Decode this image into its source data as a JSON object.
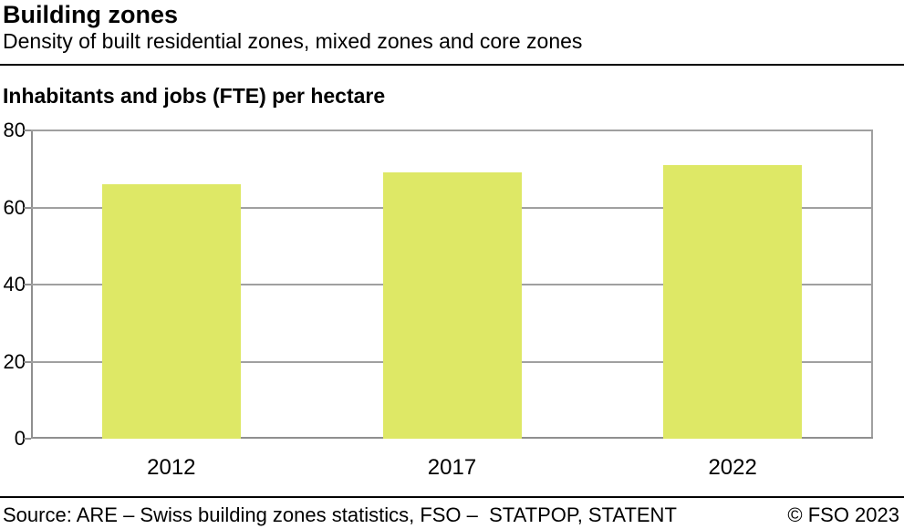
{
  "header": {
    "title": "Building zones",
    "subtitle": "Density of built residential zones, mixed zones and core zones"
  },
  "chart": {
    "section_title": "Inhabitants and jobs (FTE) per hectare",
    "bar_color": "#dee866",
    "grid_color": "#a0a0a0",
    "axis_color": "#8f8f8f"
  },
  "chart_data": {
    "type": "bar",
    "title": "Inhabitants and jobs (FTE) per hectare",
    "categories": [
      "2012",
      "2017",
      "2022"
    ],
    "values": [
      66,
      69,
      71
    ],
    "xlabel": "",
    "ylabel": "Inhabitants and jobs (FTE) per hectare",
    "ylim": [
      0,
      80
    ],
    "ytick_step": 20,
    "yticks": [
      0,
      20,
      40,
      60,
      80
    ],
    "grid": true,
    "legend": false,
    "bar_color": "#dee866"
  },
  "footer": {
    "source": "Source: ARE – Swiss building zones statistics, FSO –  STATPOP, STATENT",
    "copyright": "© FSO 2023"
  }
}
